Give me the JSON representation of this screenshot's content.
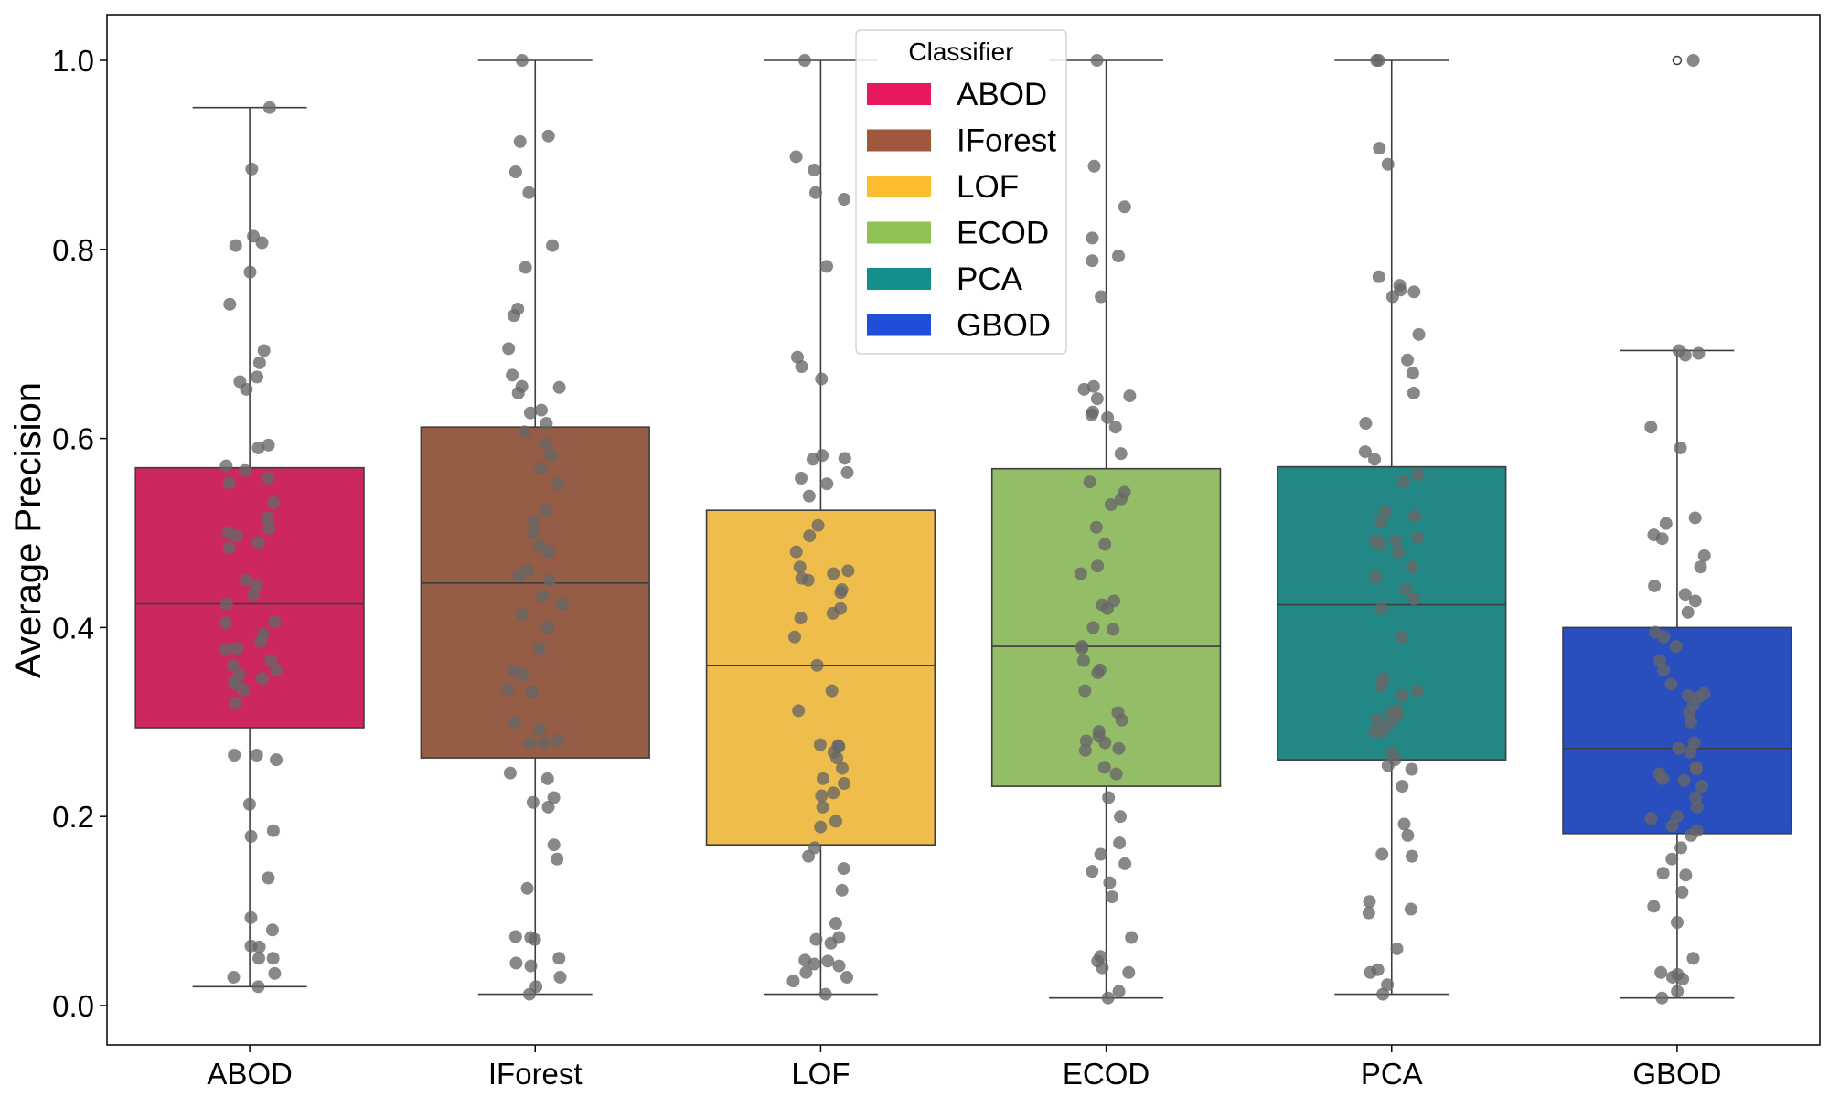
{
  "chart_data": {
    "type": "box",
    "title": "",
    "xlabel": "",
    "ylabel": "Average Precision",
    "ylim": [
      -0.04,
      1.05
    ],
    "yticks": [
      0.0,
      0.2,
      0.4,
      0.6,
      0.8,
      1.0
    ],
    "ytick_labels": [
      "0.0",
      "0.2",
      "0.4",
      "0.6",
      "0.8",
      "1.0"
    ],
    "grid": false,
    "legend": {
      "title": "Classifier",
      "placement": "top-center"
    },
    "series": [
      {
        "name": "ABOD",
        "color": "#e8195f",
        "stats": {
          "whisker_low": 0.02,
          "q1": 0.294,
          "median": 0.425,
          "q3": 0.569,
          "whisker_high": 0.95
        },
        "outliers": [],
        "points": [
          0.95,
          0.885,
          0.814,
          0.807,
          0.804,
          0.776,
          0.742,
          0.68,
          0.693,
          0.665,
          0.66,
          0.652,
          0.593,
          0.59,
          0.571,
          0.566,
          0.558,
          0.553,
          0.532,
          0.516,
          0.505,
          0.5,
          0.497,
          0.49,
          0.484,
          0.45,
          0.445,
          0.435,
          0.425,
          0.406,
          0.405,
          0.393,
          0.385,
          0.378,
          0.377,
          0.365,
          0.36,
          0.355,
          0.35,
          0.346,
          0.342,
          0.34,
          0.334,
          0.32,
          0.265,
          0.265,
          0.26,
          0.213,
          0.185,
          0.179,
          0.135,
          0.093,
          0.08,
          0.063,
          0.062,
          0.05,
          0.05,
          0.034,
          0.03,
          0.02
        ]
      },
      {
        "name": "IForest",
        "color": "#a0583d",
        "stats": {
          "whisker_low": 0.012,
          "q1": 0.262,
          "median": 0.447,
          "q3": 0.612,
          "whisker_high": 1.0
        },
        "outliers": [],
        "points": [
          1.0,
          0.92,
          0.914,
          0.882,
          0.86,
          0.804,
          0.781,
          0.737,
          0.73,
          0.695,
          0.667,
          0.655,
          0.654,
          0.648,
          0.63,
          0.627,
          0.616,
          0.607,
          0.594,
          0.582,
          0.568,
          0.552,
          0.524,
          0.512,
          0.5,
          0.486,
          0.48,
          0.46,
          0.455,
          0.45,
          0.433,
          0.425,
          0.414,
          0.4,
          0.378,
          0.354,
          0.35,
          0.335,
          0.332,
          0.3,
          0.292,
          0.28,
          0.278,
          0.278,
          0.246,
          0.24,
          0.22,
          0.215,
          0.21,
          0.17,
          0.155,
          0.124,
          0.073,
          0.072,
          0.07,
          0.05,
          0.045,
          0.042,
          0.03,
          0.02,
          0.012
        ]
      },
      {
        "name": "LOF",
        "color": "#fbbc2f",
        "stats": {
          "whisker_low": 0.012,
          "q1": 0.17,
          "median": 0.36,
          "q3": 0.524,
          "whisker_high": 1.0
        },
        "outliers": [],
        "points": [
          1.0,
          0.898,
          0.884,
          0.86,
          0.853,
          0.782,
          0.686,
          0.676,
          0.663,
          0.582,
          0.579,
          0.578,
          0.564,
          0.558,
          0.552,
          0.539,
          0.508,
          0.497,
          0.48,
          0.464,
          0.46,
          0.457,
          0.452,
          0.45,
          0.44,
          0.437,
          0.42,
          0.415,
          0.41,
          0.39,
          0.36,
          0.333,
          0.312,
          0.276,
          0.275,
          0.274,
          0.268,
          0.262,
          0.251,
          0.24,
          0.235,
          0.225,
          0.222,
          0.21,
          0.195,
          0.189,
          0.167,
          0.158,
          0.145,
          0.122,
          0.087,
          0.072,
          0.07,
          0.066,
          0.048,
          0.047,
          0.044,
          0.042,
          0.035,
          0.03,
          0.026,
          0.012
        ]
      },
      {
        "name": "ECOD",
        "color": "#8fc257",
        "stats": {
          "whisker_low": 0.008,
          "q1": 0.232,
          "median": 0.38,
          "q3": 0.568,
          "whisker_high": 1.0
        },
        "outliers": [],
        "points": [
          1.0,
          0.888,
          0.845,
          0.812,
          0.793,
          0.788,
          0.75,
          0.655,
          0.652,
          0.645,
          0.642,
          0.628,
          0.625,
          0.622,
          0.612,
          0.584,
          0.554,
          0.543,
          0.536,
          0.53,
          0.506,
          0.488,
          0.465,
          0.457,
          0.428,
          0.424,
          0.42,
          0.4,
          0.398,
          0.38,
          0.378,
          0.365,
          0.355,
          0.352,
          0.333,
          0.31,
          0.302,
          0.29,
          0.285,
          0.28,
          0.278,
          0.272,
          0.27,
          0.252,
          0.245,
          0.22,
          0.2,
          0.172,
          0.16,
          0.15,
          0.142,
          0.13,
          0.115,
          0.072,
          0.052,
          0.047,
          0.04,
          0.035,
          0.015,
          0.008
        ]
      },
      {
        "name": "PCA",
        "color": "#128e8c",
        "stats": {
          "whisker_low": 0.012,
          "q1": 0.26,
          "median": 0.424,
          "q3": 0.57,
          "whisker_high": 1.0
        },
        "outliers": [],
        "points": [
          1.0,
          1.0,
          0.907,
          0.89,
          0.771,
          0.762,
          0.757,
          0.755,
          0.75,
          0.71,
          0.683,
          0.669,
          0.648,
          0.616,
          0.586,
          0.578,
          0.562,
          0.554,
          0.522,
          0.518,
          0.512,
          0.495,
          0.492,
          0.492,
          0.488,
          0.48,
          0.464,
          0.453,
          0.44,
          0.43,
          0.42,
          0.39,
          0.346,
          0.338,
          0.333,
          0.328,
          0.312,
          0.31,
          0.306,
          0.302,
          0.298,
          0.29,
          0.29,
          0.267,
          0.26,
          0.254,
          0.25,
          0.232,
          0.192,
          0.18,
          0.16,
          0.158,
          0.11,
          0.102,
          0.098,
          0.06,
          0.038,
          0.035,
          0.022,
          0.012
        ]
      },
      {
        "name": "GBOD",
        "color": "#1f4ed8",
        "stats": {
          "whisker_low": 0.008,
          "q1": 0.182,
          "median": 0.272,
          "q3": 0.4,
          "whisker_high": 0.693
        },
        "outliers": [
          1.0
        ],
        "points": [
          1.0,
          0.693,
          0.69,
          0.688,
          0.612,
          0.59,
          0.516,
          0.51,
          0.498,
          0.494,
          0.476,
          0.464,
          0.444,
          0.435,
          0.428,
          0.416,
          0.395,
          0.39,
          0.38,
          0.365,
          0.355,
          0.34,
          0.33,
          0.328,
          0.326,
          0.318,
          0.31,
          0.3,
          0.278,
          0.272,
          0.268,
          0.252,
          0.25,
          0.245,
          0.24,
          0.238,
          0.232,
          0.22,
          0.21,
          0.2,
          0.198,
          0.19,
          0.185,
          0.18,
          0.167,
          0.155,
          0.14,
          0.138,
          0.12,
          0.105,
          0.088,
          0.05,
          0.035,
          0.033,
          0.03,
          0.028,
          0.015,
          0.008
        ]
      }
    ]
  }
}
